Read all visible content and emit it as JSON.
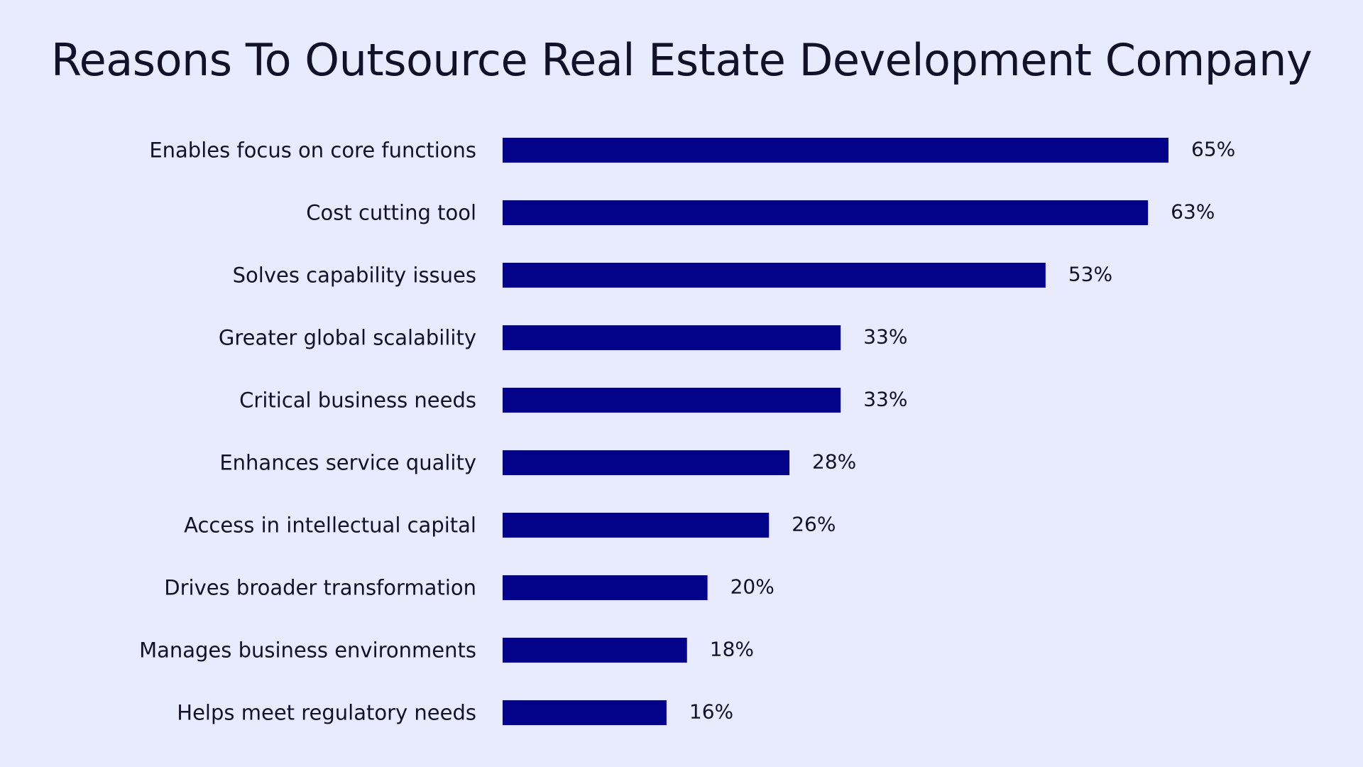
{
  "chart_data": {
    "type": "bar",
    "orientation": "horizontal",
    "title": "Reasons To Outsource Real Estate Development Company",
    "categories": [
      "Enables focus on core functions",
      "Cost cutting tool",
      "Solves capability issues",
      "Greater global scalability",
      "Critical business needs",
      "Enhances service quality",
      "Access in intellectual capital",
      "Drives broader transformation",
      "Manages business environments",
      "Helps meet regulatory needs"
    ],
    "values": [
      65,
      63,
      53,
      33,
      33,
      28,
      26,
      20,
      18,
      16
    ],
    "data_labels": [
      "65%",
      "63%",
      "53%",
      "33%",
      "33%",
      "28%",
      "26%",
      "20%",
      "18%",
      "16%"
    ],
    "unit": "%",
    "xlim": [
      0,
      65
    ],
    "grid": false,
    "bar_color": "#03038a",
    "background_color": "#e8eafe"
  }
}
